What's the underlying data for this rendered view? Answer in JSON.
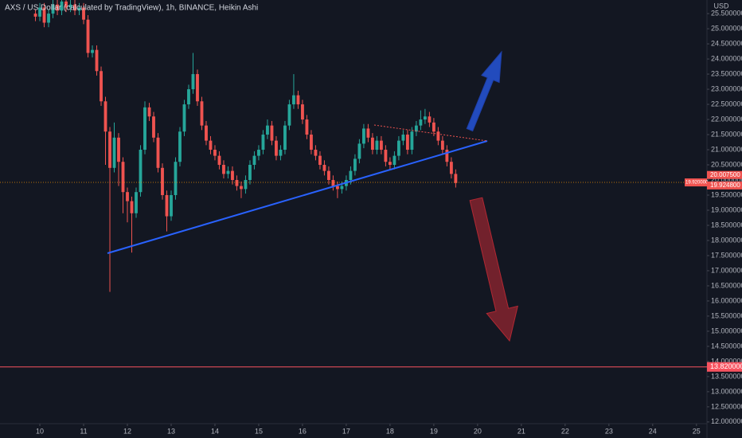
{
  "chart_data": {
    "type": "candlestick",
    "title": "AXS / US Dollar (calculated by TradingView), 1h, BINANCE, Heikin Ashi",
    "currency": "USD",
    "up_color": "#26a69a",
    "down_color": "#ef5350",
    "xlim": [
      9.09,
      25.24
    ],
    "xticks": [
      10,
      11,
      12,
      13,
      14,
      15,
      16,
      17,
      18,
      19,
      20,
      21,
      22,
      23,
      24,
      25
    ],
    "ylim": [
      11.47,
      25.95
    ],
    "yticks": [
      {
        "value": 12.0,
        "label": "12.000000"
      },
      {
        "value": 12.5,
        "label": "12.500000"
      },
      {
        "value": 13.0,
        "label": "13.000000"
      },
      {
        "value": 13.5,
        "label": "13.500000"
      },
      {
        "value": 14.0,
        "label": "14.000000"
      },
      {
        "value": 14.5,
        "label": "14.500000"
      },
      {
        "value": 15.0,
        "label": "15.000000"
      },
      {
        "value": 15.5,
        "label": "15.500000"
      },
      {
        "value": 16.0,
        "label": "16.000000"
      },
      {
        "value": 16.5,
        "label": "16.500000"
      },
      {
        "value": 17.0,
        "label": "17.000000"
      },
      {
        "value": 17.5,
        "label": "17.500000"
      },
      {
        "value": 18.0,
        "label": "18.000000"
      },
      {
        "value": 18.5,
        "label": "18.500000"
      },
      {
        "value": 19.0,
        "label": "19.000000"
      },
      {
        "value": 19.5,
        "label": "19.500000"
      },
      {
        "value": 20.0,
        "label": "20.000000"
      },
      {
        "value": 20.5,
        "label": "20.500000"
      },
      {
        "value": 21.0,
        "label": "21.000000"
      },
      {
        "value": 21.5,
        "label": "21.500000"
      },
      {
        "value": 22.0,
        "label": "22.000000"
      },
      {
        "value": 22.5,
        "label": "22.500000"
      },
      {
        "value": 23.0,
        "label": "23.000000"
      },
      {
        "value": 23.5,
        "label": "23.500000"
      },
      {
        "value": 24.0,
        "label": "24.000000"
      },
      {
        "value": 24.5,
        "label": "24.500000"
      },
      {
        "value": 25.0,
        "label": "25.000000"
      },
      {
        "value": 25.5,
        "label": "25.500000"
      }
    ],
    "current_price": {
      "value": 19.92,
      "label": "19.920000"
    },
    "horizontal_line": {
      "value": 13.82,
      "label": "13.820000"
    },
    "price_tags": [
      {
        "value": 20.0075,
        "label": "20.007500"
      },
      {
        "value": 19.9248,
        "label": "19.924800"
      }
    ],
    "x": [
      9.9,
      10.0,
      10.1,
      10.2,
      10.3,
      10.4,
      10.5,
      10.6,
      10.7,
      10.8,
      10.9,
      11.0,
      11.1,
      11.2,
      11.3,
      11.4,
      11.5,
      11.6,
      11.7,
      11.8,
      11.9,
      12.0,
      12.1,
      12.2,
      12.3,
      12.4,
      12.5,
      12.6,
      12.7,
      12.8,
      12.9,
      13.0,
      13.1,
      13.2,
      13.3,
      13.4,
      13.5,
      13.6,
      13.7,
      13.8,
      13.9,
      14.0,
      14.1,
      14.2,
      14.3,
      14.4,
      14.5,
      14.6,
      14.7,
      14.8,
      14.9,
      15.0,
      15.1,
      15.2,
      15.3,
      15.4,
      15.5,
      15.6,
      15.7,
      15.8,
      15.9,
      16.0,
      16.1,
      16.2,
      16.3,
      16.4,
      16.5,
      16.6,
      16.7,
      16.8,
      16.9,
      17.0,
      17.1,
      17.2,
      17.3,
      17.4,
      17.5,
      17.6,
      17.7,
      17.8,
      17.9,
      18.0,
      18.1,
      18.2,
      18.3,
      18.4,
      18.5,
      18.6,
      18.7,
      18.8,
      18.9,
      19.0,
      19.1,
      19.2,
      19.3,
      19.4,
      19.5
    ],
    "candles": [
      [
        25.5,
        25.65,
        25.25,
        25.4
      ],
      [
        25.4,
        25.85,
        25.25,
        25.7
      ],
      [
        25.7,
        25.85,
        25.05,
        25.2
      ],
      [
        25.2,
        25.65,
        25.05,
        25.5
      ],
      [
        25.5,
        25.95,
        25.35,
        25.8
      ],
      [
        25.8,
        25.95,
        25.45,
        25.6
      ],
      [
        25.6,
        25.95,
        25.45,
        25.9
      ],
      [
        25.9,
        25.95,
        25.55,
        25.7
      ],
      [
        25.7,
        25.95,
        25.55,
        25.8
      ],
      [
        25.8,
        25.95,
        25.45,
        25.6
      ],
      [
        25.6,
        25.85,
        25.45,
        25.7
      ],
      [
        25.7,
        25.85,
        25.15,
        25.3
      ],
      [
        25.3,
        25.45,
        24.05,
        24.2
      ],
      [
        24.2,
        24.45,
        24.05,
        24.3
      ],
      [
        24.3,
        24.45,
        23.45,
        23.6
      ],
      [
        23.6,
        23.75,
        22.45,
        22.6
      ],
      [
        22.6,
        22.75,
        20.5,
        21.6
      ],
      [
        21.6,
        21.75,
        16.3,
        20.4
      ],
      [
        20.4,
        21.9,
        20.25,
        21.4
      ],
      [
        21.4,
        21.55,
        19.8,
        20.6
      ],
      [
        20.6,
        20.75,
        18.9,
        19.6
      ],
      [
        19.6,
        19.75,
        18.6,
        19.3
      ],
      [
        19.3,
        19.45,
        17.6,
        18.9
      ],
      [
        18.9,
        19.75,
        18.75,
        19.6
      ],
      [
        19.6,
        21.15,
        19.45,
        21.0
      ],
      [
        21.0,
        22.6,
        20.85,
        22.4
      ],
      [
        22.4,
        22.55,
        21.95,
        22.1
      ],
      [
        22.1,
        22.25,
        21.25,
        21.4
      ],
      [
        21.4,
        21.55,
        20.25,
        20.4
      ],
      [
        20.4,
        20.55,
        19.35,
        19.5
      ],
      [
        19.5,
        19.65,
        18.3,
        18.8
      ],
      [
        18.8,
        19.65,
        18.65,
        19.5
      ],
      [
        19.5,
        20.75,
        19.35,
        20.6
      ],
      [
        20.6,
        21.75,
        20.45,
        21.6
      ],
      [
        21.6,
        22.65,
        21.45,
        22.5
      ],
      [
        22.5,
        23.15,
        22.35,
        23.0
      ],
      [
        23.0,
        24.2,
        22.85,
        23.5
      ],
      [
        23.5,
        23.65,
        22.45,
        22.6
      ],
      [
        22.6,
        22.75,
        21.65,
        21.8
      ],
      [
        21.8,
        21.95,
        21.15,
        21.3
      ],
      [
        21.3,
        21.45,
        20.85,
        21.0
      ],
      [
        21.0,
        21.15,
        20.65,
        20.8
      ],
      [
        20.8,
        20.95,
        20.35,
        20.5
      ],
      [
        20.5,
        20.65,
        20.05,
        20.2
      ],
      [
        20.2,
        20.45,
        20.05,
        20.3
      ],
      [
        20.3,
        20.45,
        19.85,
        20.0
      ],
      [
        20.0,
        20.15,
        19.65,
        19.8
      ],
      [
        19.8,
        19.95,
        19.4,
        19.7
      ],
      [
        19.7,
        20.15,
        19.55,
        20.0
      ],
      [
        20.0,
        20.65,
        19.85,
        20.5
      ],
      [
        20.5,
        20.95,
        20.35,
        20.8
      ],
      [
        20.8,
        21.15,
        20.65,
        21.0
      ],
      [
        21.0,
        21.65,
        20.85,
        21.5
      ],
      [
        21.5,
        22.0,
        21.35,
        21.8
      ],
      [
        21.8,
        21.95,
        21.15,
        21.3
      ],
      [
        21.3,
        21.45,
        20.65,
        20.8
      ],
      [
        20.8,
        21.15,
        20.65,
        21.0
      ],
      [
        21.0,
        21.95,
        20.85,
        21.8
      ],
      [
        21.8,
        22.65,
        21.65,
        22.5
      ],
      [
        22.5,
        23.5,
        22.35,
        22.8
      ],
      [
        22.8,
        22.95,
        22.35,
        22.5
      ],
      [
        22.5,
        22.65,
        21.85,
        22.0
      ],
      [
        22.0,
        22.15,
        21.35,
        21.5
      ],
      [
        21.5,
        21.65,
        20.85,
        21.0
      ],
      [
        21.0,
        21.15,
        20.65,
        20.8
      ],
      [
        20.8,
        20.95,
        20.35,
        20.5
      ],
      [
        20.5,
        20.65,
        20.15,
        20.3
      ],
      [
        20.3,
        20.45,
        19.85,
        20.0
      ],
      [
        20.0,
        20.15,
        19.65,
        19.8
      ],
      [
        19.8,
        19.95,
        19.4,
        19.7
      ],
      [
        19.7,
        19.95,
        19.55,
        19.8
      ],
      [
        19.8,
        20.15,
        19.65,
        20.0
      ],
      [
        20.0,
        20.45,
        19.85,
        20.3
      ],
      [
        20.3,
        20.85,
        20.15,
        20.7
      ],
      [
        20.7,
        21.35,
        20.55,
        21.2
      ],
      [
        21.2,
        21.85,
        21.05,
        21.7
      ],
      [
        21.7,
        21.85,
        21.25,
        21.4
      ],
      [
        21.4,
        21.55,
        20.85,
        21.0
      ],
      [
        21.0,
        21.45,
        20.85,
        21.3
      ],
      [
        21.3,
        21.45,
        20.85,
        21.0
      ],
      [
        21.0,
        21.15,
        20.45,
        20.6
      ],
      [
        20.6,
        20.75,
        20.35,
        20.5
      ],
      [
        20.5,
        20.95,
        20.35,
        20.8
      ],
      [
        20.8,
        21.45,
        20.65,
        21.3
      ],
      [
        21.3,
        21.65,
        21.15,
        21.5
      ],
      [
        21.5,
        21.65,
        20.85,
        21.0
      ],
      [
        21.0,
        21.75,
        20.85,
        21.6
      ],
      [
        21.6,
        21.95,
        21.45,
        21.8
      ],
      [
        21.8,
        22.3,
        21.65,
        22.0
      ],
      [
        22.0,
        22.35,
        21.85,
        22.1
      ],
      [
        22.1,
        22.25,
        21.75,
        21.9
      ],
      [
        21.9,
        22.05,
        21.45,
        21.6
      ],
      [
        21.6,
        21.75,
        21.15,
        21.3
      ],
      [
        21.3,
        21.45,
        20.85,
        21.0
      ],
      [
        21.0,
        21.15,
        20.45,
        20.6
      ],
      [
        20.6,
        20.75,
        20.05,
        20.2
      ],
      [
        20.2,
        20.35,
        19.75,
        19.9
      ]
    ]
  }
}
